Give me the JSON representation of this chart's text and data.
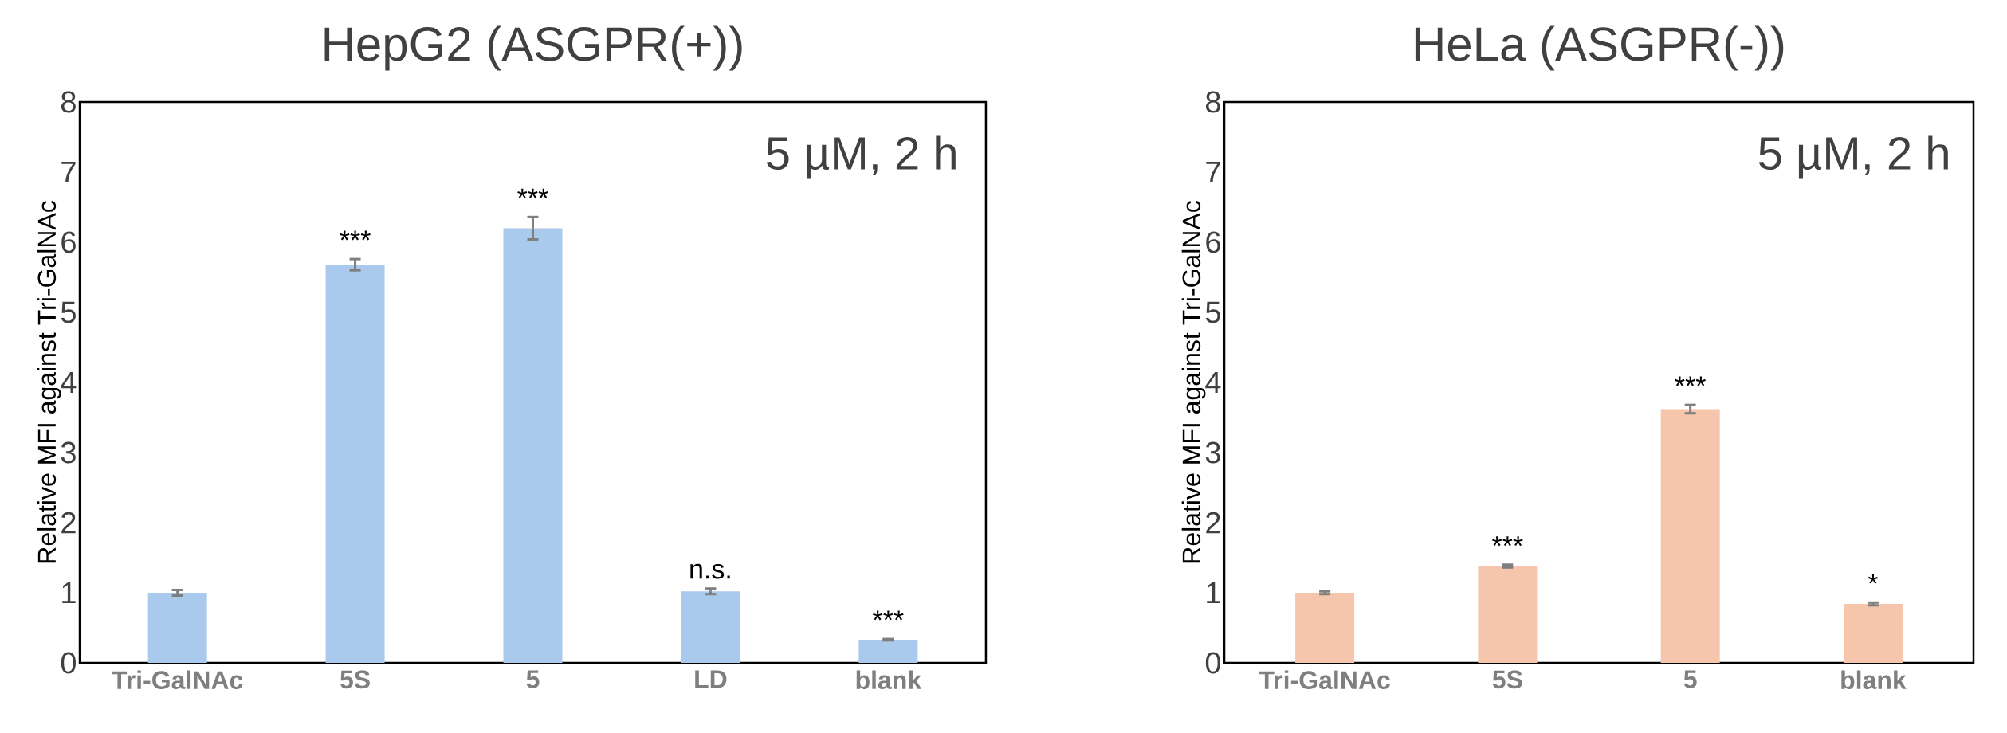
{
  "chart_data": [
    {
      "type": "bar",
      "title": "HepG2 (ASGPR(+))",
      "ylabel": "Relative MFI against Tri-GalNAc",
      "categories": [
        "Tri-GalNAc",
        "5S",
        "5",
        "LD",
        "blank"
      ],
      "values": [
        1.0,
        5.68,
        6.2,
        1.02,
        0.33
      ],
      "errors": [
        0.04,
        0.08,
        0.16,
        0.04,
        0.01
      ],
      "color": "#a9caec",
      "ylim": [
        0,
        8
      ],
      "yticks": [
        0,
        1,
        2,
        3,
        4,
        5,
        6,
        7,
        8
      ],
      "annotations": [
        "5 µM, 2 h",
        {
          "text": "***",
          "x": "5S",
          "y": 5.76
        },
        {
          "text": "***",
          "x": "5",
          "y": 6.36
        },
        {
          "text": "n.s.",
          "x": "LD",
          "y": 1.06
        },
        {
          "text": "***",
          "x": "blank",
          "y": 0.34
        }
      ]
    },
    {
      "type": "bar",
      "title": "HeLa (ASGPR(-))",
      "ylabel": "Relative MFI against Tri-GalNAc",
      "categories": [
        "Tri-GalNAc",
        "5S",
        "5",
        "blank"
      ],
      "values": [
        1.0,
        1.38,
        3.62,
        0.84
      ],
      "errors": [
        0.02,
        0.02,
        0.06,
        0.02
      ],
      "color": "#f5c6ab",
      "ylim": [
        0,
        8
      ],
      "yticks": [
        0,
        1,
        2,
        3,
        4,
        5,
        6,
        7,
        8
      ],
      "annotations": [
        "5 µM, 2 h",
        {
          "text": "***",
          "x": "5S",
          "y": 1.4
        },
        {
          "text": "***",
          "x": "5",
          "y": 3.68
        },
        {
          "text": "*",
          "x": "blank",
          "y": 0.86
        }
      ]
    }
  ]
}
